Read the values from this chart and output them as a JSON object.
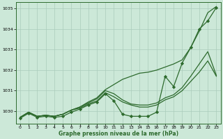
{
  "title": "Graphe pression niveau de la mer (hPa)",
  "background_color": "#cce8d8",
  "plot_bg_color": "#cce8d8",
  "grid_color": "#aaccbb",
  "line_color": "#2d6a2d",
  "marker_color": "#2d6a2d",
  "xlim": [
    -0.5,
    23.5
  ],
  "ylim": [
    1029.4,
    1035.3
  ],
  "yticks": [
    1030,
    1031,
    1032,
    1033,
    1034,
    1035
  ],
  "xticks": [
    0,
    1,
    2,
    3,
    4,
    5,
    6,
    7,
    8,
    9,
    10,
    11,
    12,
    13,
    14,
    15,
    16,
    17,
    18,
    19,
    20,
    21,
    22,
    23
  ],
  "series_upper": [
    1029.7,
    1029.95,
    1029.75,
    1029.8,
    1029.75,
    1029.85,
    1030.05,
    1030.2,
    1030.45,
    1030.65,
    1031.05,
    1031.3,
    1031.55,
    1031.7,
    1031.85,
    1031.9,
    1032.0,
    1032.15,
    1032.3,
    1032.5,
    1033.1,
    1033.9,
    1034.8,
    1035.1
  ],
  "series_mid1": [
    1029.7,
    1029.95,
    1029.75,
    1029.8,
    1029.75,
    1029.85,
    1030.05,
    1030.2,
    1030.4,
    1030.6,
    1031.0,
    1030.85,
    1030.55,
    1030.35,
    1030.3,
    1030.3,
    1030.4,
    1030.65,
    1030.8,
    1031.15,
    1031.7,
    1032.3,
    1032.9,
    1031.75
  ],
  "series_mid2": [
    1029.7,
    1029.95,
    1029.75,
    1029.8,
    1029.75,
    1029.85,
    1030.05,
    1030.15,
    1030.35,
    1030.5,
    1030.9,
    1030.7,
    1030.45,
    1030.3,
    1030.2,
    1030.2,
    1030.3,
    1030.55,
    1030.7,
    1031.0,
    1031.45,
    1031.9,
    1032.45,
    1031.7
  ],
  "series_main": [
    1029.65,
    1029.9,
    1029.7,
    1029.75,
    1029.7,
    1029.75,
    1029.95,
    1030.1,
    1030.3,
    1030.45,
    1030.85,
    1030.5,
    1029.85,
    1029.75,
    1029.75,
    1029.75,
    1029.95,
    1031.7,
    1031.2,
    1032.35,
    1033.1,
    1034.0,
    1034.4,
    1035.05
  ]
}
